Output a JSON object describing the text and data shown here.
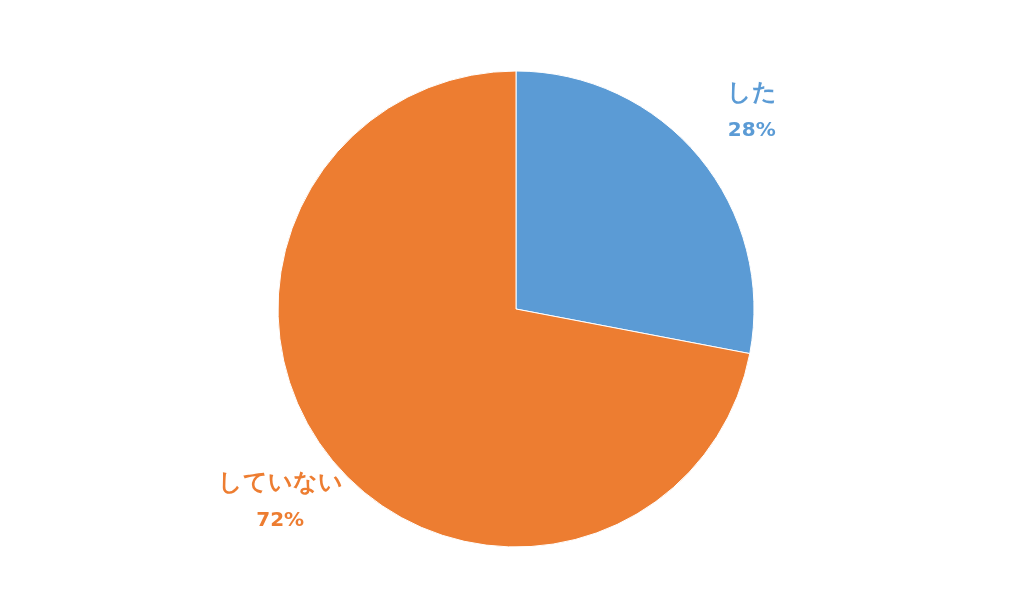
{
  "chart_data": {
    "type": "pie",
    "categories": [
      "した",
      "していない"
    ],
    "values": [
      28,
      72
    ],
    "colors": [
      "#5b9bd5",
      "#ed7d31"
    ],
    "value_labels": [
      "28%",
      "72%"
    ]
  }
}
